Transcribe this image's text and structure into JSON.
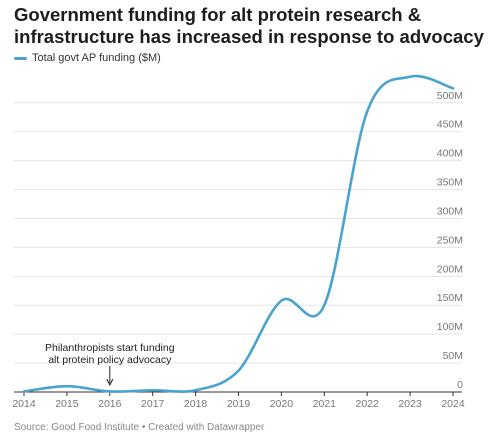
{
  "chart_data": {
    "type": "line",
    "title": "Government funding for alt protein research & infrastructure has increased in response to advocacy",
    "series": [
      {
        "name": "Total govt AP funding ($M)",
        "color": "#4aa3ce",
        "values": [
          1,
          10,
          1,
          3,
          3,
          37,
          158,
          150,
          485,
          545,
          525
        ]
      }
    ],
    "x": [
      "2014",
      "2015",
      "2016",
      "2017",
      "2018",
      "2019",
      "2020",
      "2021",
      "2022",
      "2023",
      "2024"
    ],
    "yticks": [
      0,
      50,
      100,
      150,
      200,
      250,
      300,
      350,
      400,
      450,
      500
    ],
    "ytick_labels": [
      "0",
      "50M",
      "100M",
      "150M",
      "200M",
      "250M",
      "300M",
      "350M",
      "400M",
      "450M",
      "500M"
    ],
    "ylim": [
      0,
      555
    ],
    "grid": true,
    "legend": "top-left",
    "annotation": {
      "x": "2016",
      "lines": [
        "Philanthropists start funding",
        "alt protein policy advocacy"
      ]
    }
  },
  "source": "Source: Good Food Institute • Created with Datawrapper"
}
